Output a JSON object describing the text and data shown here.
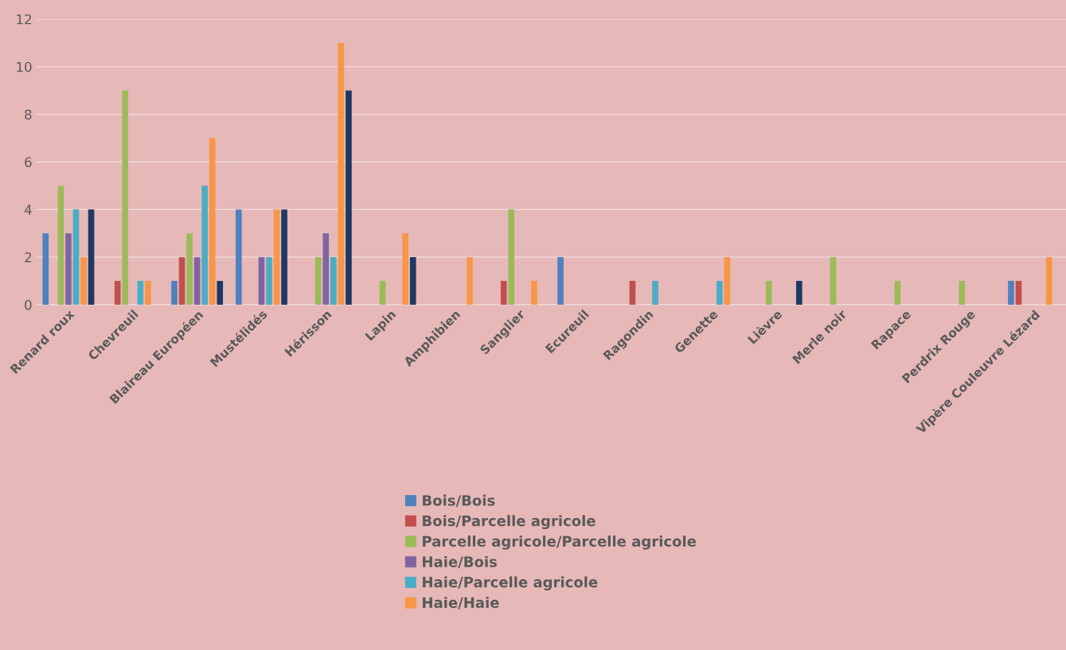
{
  "chart_data": {
    "type": "bar",
    "categories": [
      "Renard roux",
      "Chevreuil",
      "Blaireau Européen",
      "Mustélidés",
      "Hérisson",
      "Lapin",
      "Amphibien",
      "Sanglier",
      "Ecureuil",
      "Ragondin",
      "Genette",
      "Lièvre",
      "Merle noir",
      "Rapace",
      "Perdrix Rouge",
      "Vipère Couleuvre Lézard"
    ],
    "series": [
      {
        "name": "Bois/Bois",
        "color": "#4f81bd",
        "values": [
          3,
          0,
          1,
          4,
          0,
          0,
          0,
          0,
          2,
          0,
          0,
          0,
          0,
          0,
          0,
          1
        ]
      },
      {
        "name": "Bois/Parcelle agricole",
        "color": "#c0504d",
        "values": [
          0,
          1,
          2,
          0,
          0,
          0,
          0,
          1,
          0,
          1,
          0,
          0,
          0,
          0,
          0,
          1
        ]
      },
      {
        "name": "Parcelle agricole/Parcelle agricole",
        "color": "#9bbb59",
        "values": [
          5,
          9,
          3,
          0,
          2,
          1,
          0,
          4,
          0,
          0,
          0,
          1,
          2,
          1,
          1,
          0
        ]
      },
      {
        "name": "Haie/Bois",
        "color": "#8064a2",
        "values": [
          3,
          0,
          2,
          2,
          3,
          0,
          0,
          0,
          0,
          0,
          0,
          0,
          0,
          0,
          0,
          0
        ]
      },
      {
        "name": "Haie/Parcelle agricole",
        "color": "#4bacc6",
        "values": [
          4,
          1,
          5,
          2,
          2,
          0,
          0,
          0,
          0,
          1,
          1,
          0,
          0,
          0,
          0,
          0
        ]
      },
      {
        "name": "Haie/Haie",
        "color": "#f79646",
        "values": [
          2,
          1,
          7,
          4,
          11,
          3,
          2,
          1,
          0,
          0,
          2,
          0,
          0,
          0,
          0,
          2
        ]
      },
      {
        "color": "#1f3864",
        "values": [
          4,
          0,
          1,
          4,
          9,
          2,
          0,
          0,
          0,
          0,
          0,
          1,
          0,
          0,
          0,
          0
        ]
      }
    ],
    "ylim": [
      0,
      12
    ],
    "yticks": [
      0,
      2,
      4,
      6,
      8,
      10,
      12
    ],
    "grid": "y",
    "legend": "bottom"
  }
}
